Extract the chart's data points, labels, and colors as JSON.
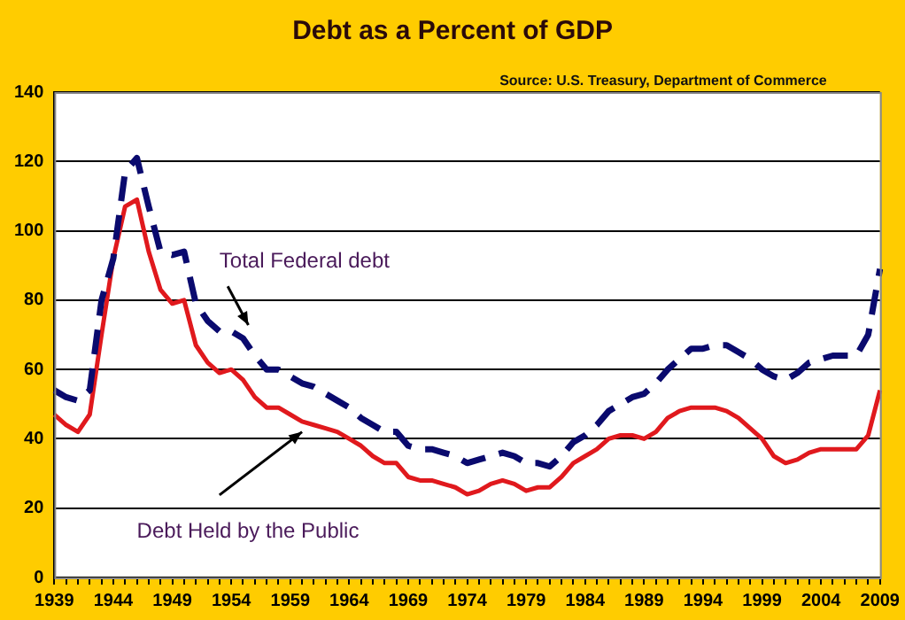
{
  "chart_data": {
    "type": "line",
    "title": "Debt as a Percent of GDP",
    "categories": [
      "1939",
      null,
      null,
      null,
      null,
      "1944",
      null,
      null,
      null,
      null,
      "1949",
      null,
      null,
      null,
      null,
      "1954",
      null,
      null,
      null,
      null,
      "1959",
      null,
      null,
      null,
      null,
      "1964",
      null,
      null,
      null,
      null,
      "1969",
      null,
      null,
      null,
      null,
      "1974",
      null,
      null,
      null,
      null,
      "1979",
      null,
      null,
      null,
      null,
      "1984",
      null,
      null,
      null,
      null,
      "1989",
      null,
      null,
      null,
      null,
      "1994",
      null,
      null,
      null,
      null,
      "1999",
      null,
      null,
      null,
      null,
      "2004",
      null,
      null,
      null,
      null,
      "2009"
    ],
    "series": [
      {
        "color": "#0a0a6e",
        "line_style": "dashed",
        "values": [
          54,
          52,
          51,
          54,
          80,
          92,
          117,
          121,
          107,
          94,
          93,
          94,
          79,
          74,
          71,
          71,
          69,
          64,
          60,
          60,
          58,
          56,
          55,
          53,
          51,
          49,
          46,
          44,
          42,
          42,
          38,
          37,
          37,
          36,
          35,
          33,
          34,
          35,
          36,
          35,
          33,
          33,
          32,
          35,
          39,
          41,
          44,
          48,
          50,
          52,
          53,
          56,
          60,
          63,
          66,
          66,
          67,
          67,
          65,
          63,
          60,
          58,
          57,
          59,
          62,
          63,
          64,
          64,
          64,
          70,
          89
        ]
      },
      {
        "color": "#e0191d",
        "line_style": "solid",
        "values": [
          47,
          44,
          42,
          47,
          70,
          92,
          107,
          109,
          94,
          83,
          79,
          80,
          67,
          62,
          59,
          60,
          57,
          52,
          49,
          49,
          47,
          45,
          44,
          43,
          42,
          40,
          38,
          35,
          33,
          33,
          29,
          28,
          28,
          27,
          26,
          24,
          25,
          27,
          28,
          27,
          25,
          26,
          26,
          29,
          33,
          35,
          37,
          40,
          41,
          41,
          40,
          42,
          46,
          48,
          49,
          49,
          49,
          48,
          46,
          43,
          40,
          35,
          33,
          34,
          36,
          37,
          37,
          37,
          37,
          41,
          54
        ]
      }
    ],
    "ylim": [
      0,
      140
    ],
    "yticks": [
      0,
      20,
      40,
      60,
      80,
      100,
      120,
      140
    ],
    "grid": "y",
    "legend": false,
    "marker": "none",
    "annotations": [
      "Total Federal debt",
      "Debt Held by the Public",
      "Source: U.S. Treasury, Department of Commerce"
    ]
  }
}
